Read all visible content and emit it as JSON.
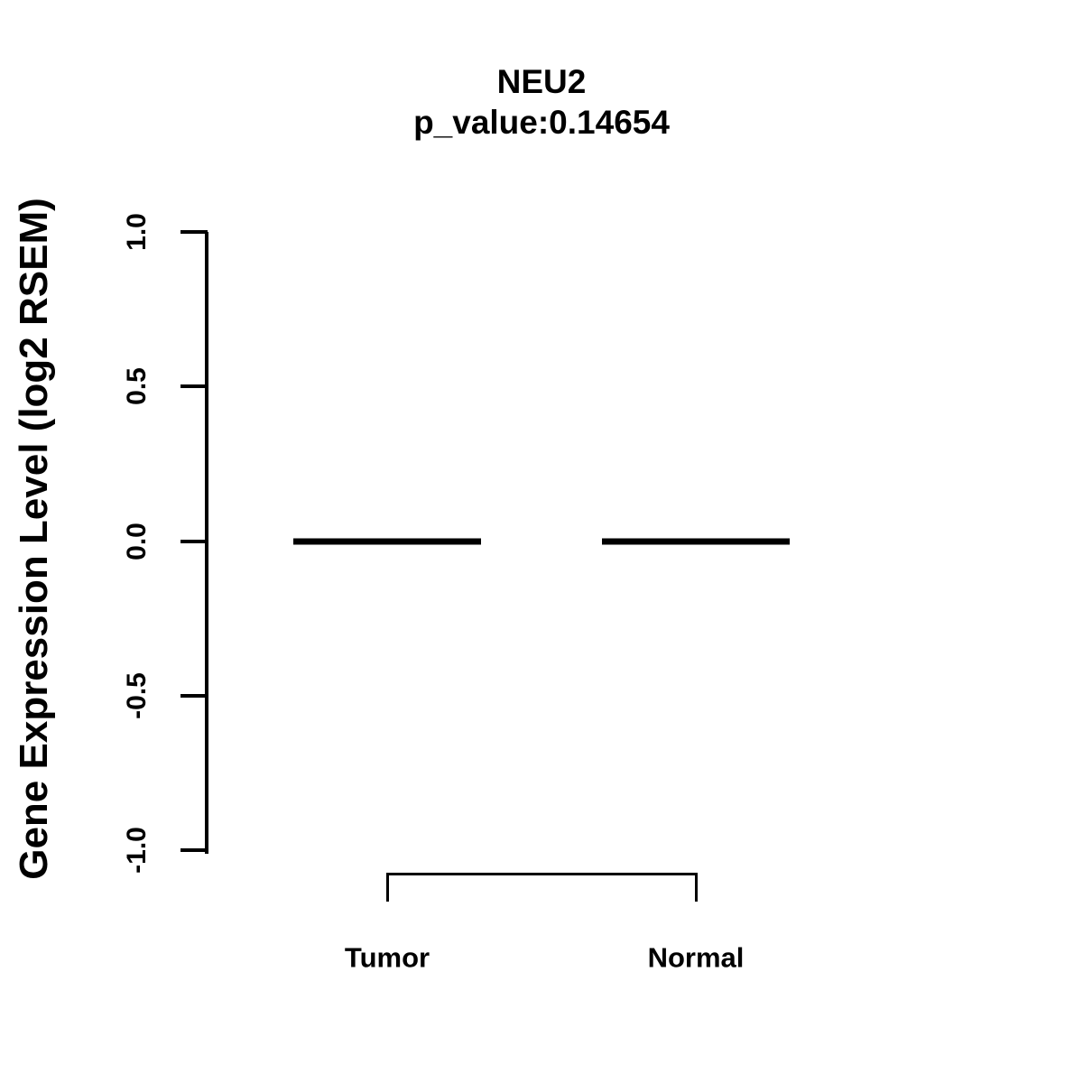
{
  "page": {
    "background_color": "#ffffff",
    "foreground_color": "#000000"
  },
  "chart_data": {
    "type": "boxplot",
    "title": "NEU2",
    "subtitle": "p_value:0.14654",
    "p_value": 0.14654,
    "gene": "NEU2",
    "ylabel": "Gene Expression Level (log2 RSEM)",
    "xlabel": "",
    "categories": [
      "Tumor",
      "Normal"
    ],
    "series": [
      {
        "name": "Tumor",
        "median": 0.0,
        "q1": 0.0,
        "q3": 0.0,
        "min": 0.0,
        "max": 0.0
      },
      {
        "name": "Normal",
        "median": 0.0,
        "q1": 0.0,
        "q3": 0.0,
        "min": 0.0,
        "max": 0.0
      }
    ],
    "ylim": [
      -1.0,
      1.0
    ],
    "yticks": [
      1.0,
      0.5,
      0.0,
      -0.5,
      -1.0
    ],
    "ytick_labels": [
      "1.0",
      "0.5",
      "0.0",
      "-0.5",
      "-1.0"
    ],
    "grid": false,
    "legend": false,
    "annotations": [
      {
        "type": "bracket",
        "from": "Tumor",
        "to": "Normal",
        "side": "bottom"
      }
    ]
  }
}
